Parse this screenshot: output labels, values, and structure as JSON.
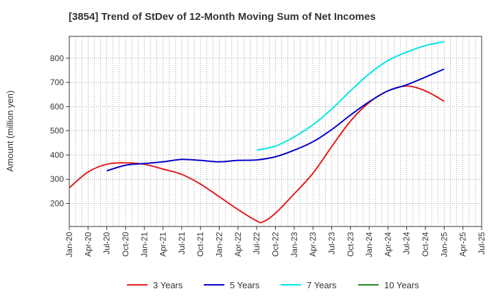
{
  "chart_data": {
    "type": "line",
    "title": "[3854]  Trend of StDev of 12-Month Moving Sum of Net Incomes",
    "xlabel": "",
    "ylabel": "Amount (million yen)",
    "x_ticks": [
      "Jan-20",
      "Apr-20",
      "Jul-20",
      "Oct-20",
      "Jan-21",
      "Apr-21",
      "Jul-21",
      "Oct-21",
      "Jan-22",
      "Apr-22",
      "Jul-22",
      "Oct-22",
      "Jan-23",
      "Apr-23",
      "Jul-23",
      "Oct-23",
      "Jan-24",
      "Apr-24",
      "Jul-24",
      "Oct-24",
      "Jan-25",
      "Apr-25",
      "Jul-25"
    ],
    "y_ticks": [
      200,
      300,
      400,
      500,
      600,
      700,
      800
    ],
    "ylim": [
      105,
      890
    ],
    "grid": true,
    "legend_position": "bottom",
    "series": [
      {
        "name": "3 Years",
        "color": "#e31a1c",
        "x": [
          "Jan-20",
          "Apr-20",
          "Jul-20",
          "Oct-20",
          "Jan-21",
          "Apr-21",
          "Jul-21",
          "Oct-21",
          "Jan-22",
          "Apr-22",
          "Jul-22",
          "Aug-22",
          "Oct-22",
          "Jan-23",
          "Apr-23",
          "Jul-23",
          "Oct-23",
          "Jan-24",
          "Apr-24",
          "Jul-24",
          "Oct-24",
          "Jan-25"
        ],
        "values": [
          265,
          330,
          362,
          368,
          362,
          342,
          320,
          280,
          228,
          175,
          128,
          124,
          160,
          240,
          325,
          435,
          540,
          617,
          665,
          685,
          665,
          622
        ]
      },
      {
        "name": "5 Years",
        "color": "#0000cc",
        "x": [
          "Jul-20",
          "Oct-20",
          "Jan-21",
          "Apr-21",
          "Jul-21",
          "Oct-21",
          "Jan-22",
          "Apr-22",
          "Jul-22",
          "Oct-22",
          "Jan-23",
          "Apr-23",
          "Jul-23",
          "Oct-23",
          "Jan-24",
          "Apr-24",
          "Jul-24",
          "Oct-24",
          "Jan-25"
        ],
        "values": [
          335,
          358,
          365,
          372,
          382,
          378,
          372,
          378,
          380,
          393,
          420,
          455,
          505,
          565,
          620,
          665,
          690,
          722,
          755
        ]
      },
      {
        "name": "7 Years",
        "color": "#00e5e5",
        "x": [
          "Jul-22",
          "Oct-22",
          "Jan-23",
          "Apr-23",
          "Jul-23",
          "Oct-23",
          "Jan-24",
          "Apr-24",
          "Jul-24",
          "Oct-24",
          "Jan-25"
        ],
        "values": [
          420,
          437,
          475,
          525,
          590,
          665,
          735,
          790,
          825,
          852,
          868
        ]
      },
      {
        "name": "10 Years",
        "color": "#228b22",
        "x": [],
        "values": []
      }
    ]
  }
}
